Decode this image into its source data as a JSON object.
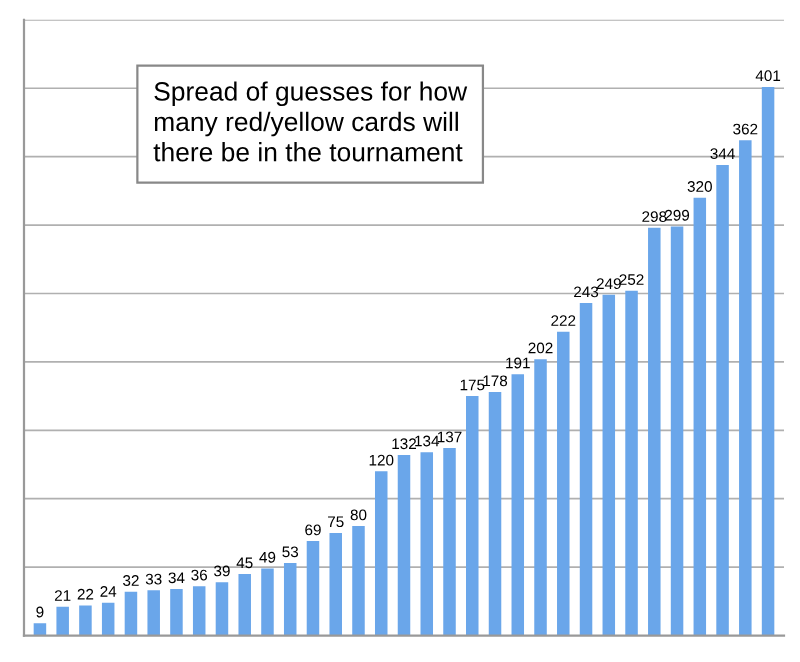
{
  "chart_data": {
    "type": "bar",
    "categories": [
      null,
      null,
      null,
      null,
      null,
      null,
      null,
      null,
      null,
      null,
      null,
      null,
      null,
      null,
      null,
      null,
      null,
      null,
      null,
      null,
      null,
      null,
      null,
      null,
      null,
      null,
      null,
      null,
      null,
      null,
      null,
      null,
      null
    ],
    "values": [
      9,
      21,
      22,
      24,
      32,
      33,
      34,
      36,
      39,
      45,
      49,
      53,
      69,
      75,
      80,
      120,
      132,
      134,
      137,
      175,
      178,
      191,
      202,
      222,
      243,
      249,
      252,
      298,
      299,
      320,
      344,
      362,
      401
    ],
    "color": "#6aa6ea",
    "data_labels": true,
    "annotations": [
      "Spread of guesses for how many red/yellow cards will there be in the tournament"
    ],
    "ylim": [
      0,
      450
    ],
    "yticks": [
      {
        "value": 50,
        "label": null
      },
      {
        "value": 100,
        "label": null
      },
      {
        "value": 150,
        "label": null
      },
      {
        "value": 200,
        "label": null
      },
      {
        "value": 250,
        "label": null
      },
      {
        "value": 300,
        "label": null
      },
      {
        "value": 350,
        "label": null
      },
      {
        "value": 400,
        "label": null
      },
      {
        "value": 450,
        "label": null
      }
    ],
    "grid": "y"
  }
}
